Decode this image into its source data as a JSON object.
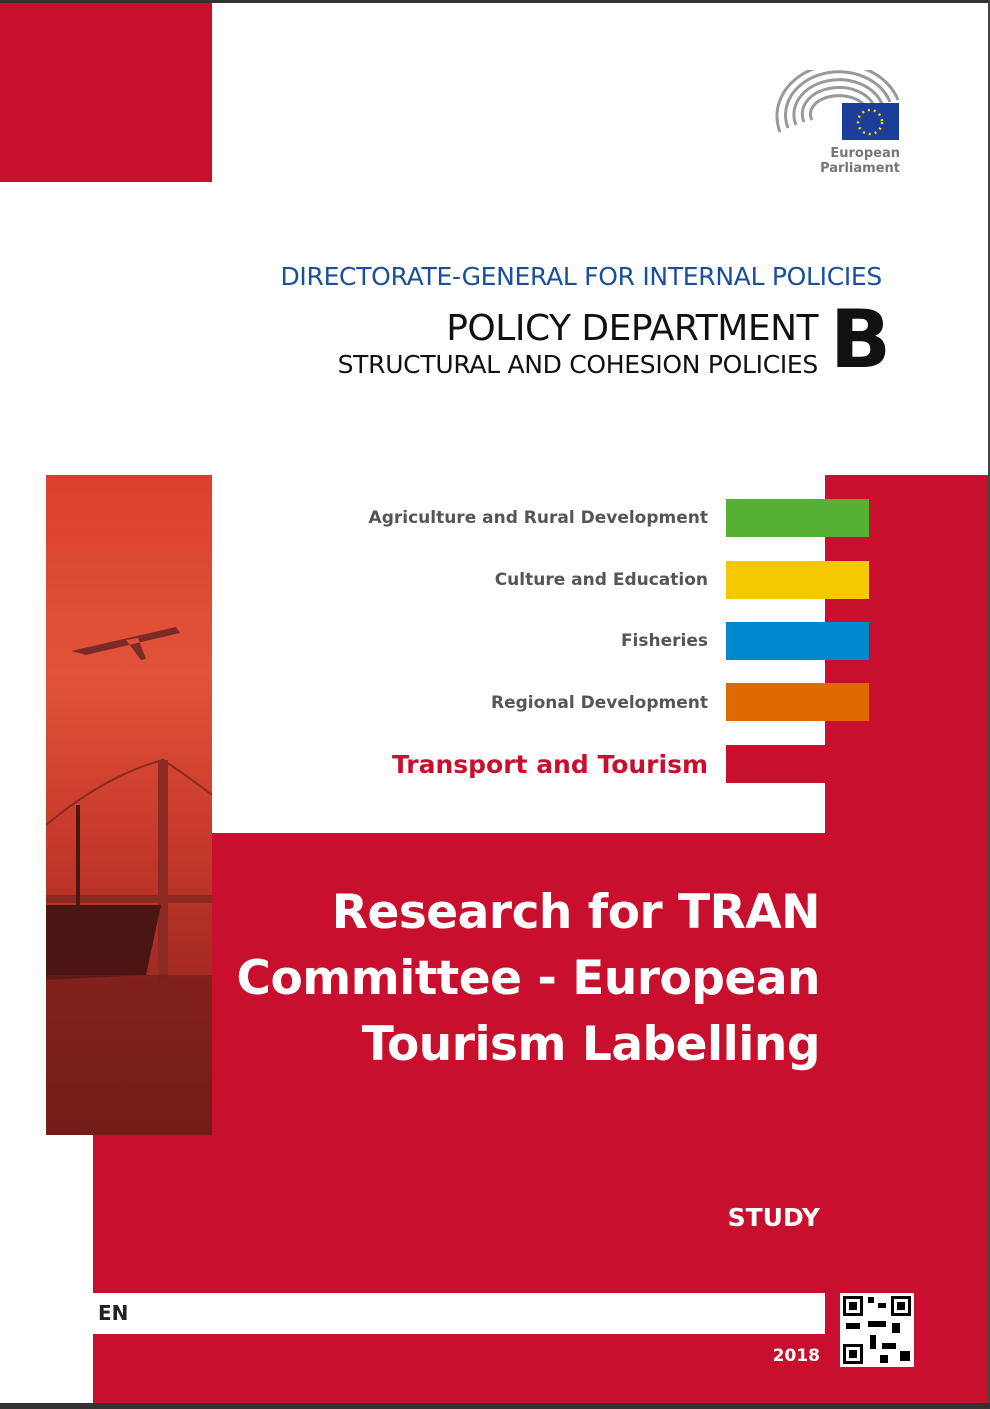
{
  "logo": {
    "text": "European Parliament"
  },
  "header": {
    "directorate": "DIRECTORATE-GENERAL FOR INTERNAL POLICIES",
    "department": "POLICY DEPARTMENT",
    "subdepartment": "STRUCTURAL AND COHESION POLICIES",
    "letter": "B"
  },
  "policies": [
    {
      "label": "Agriculture and Rural Development",
      "color": "#55b033"
    },
    {
      "label": "Culture and Education",
      "color": "#f5c800"
    },
    {
      "label": "Fisheries",
      "color": "#0088cc"
    },
    {
      "label": "Regional Development",
      "color": "#e06a00"
    },
    {
      "label": "Transport and Tourism",
      "color": "#c8102e",
      "active": true
    }
  ],
  "title": {
    "line1": "Research for TRAN",
    "line2": "Committee - European",
    "line3": "Tourism Labelling"
  },
  "type": "STUDY",
  "language": "EN",
  "year": "2018",
  "colors": {
    "brand_red": "#c8102e",
    "directorate_blue": "#1a4f9c"
  }
}
